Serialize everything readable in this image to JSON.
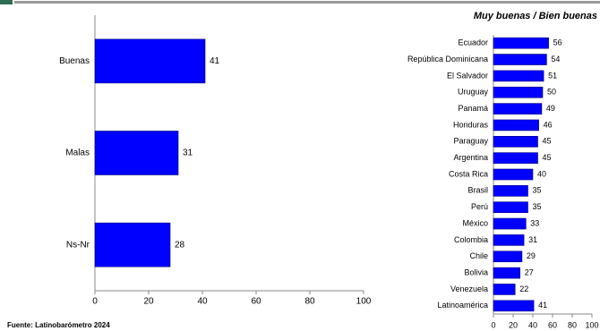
{
  "chart_data": [
    {
      "type": "hbar",
      "categories": [
        "Buenas",
        "Malas",
        "Ns-Nr"
      ],
      "values": [
        41,
        31,
        28
      ],
      "color": "#0000ff",
      "xlim": [
        0,
        100
      ],
      "xticks": [
        0,
        20,
        40,
        60,
        80,
        100
      ]
    },
    {
      "type": "hbar",
      "title": "Muy buenas / Bien buenas",
      "categories": [
        "Ecuador",
        "República Dominicana",
        "El Salvador",
        "Uruguay",
        "Panamá",
        "Honduras",
        "Paraguay",
        "Argentina",
        "Costa Rica",
        "Brasil",
        "Perú",
        "México",
        "Colombia",
        "Chile",
        "Bolivia",
        "Venezuela",
        "Latinoamérica"
      ],
      "values": [
        56,
        54,
        51,
        50,
        49,
        46,
        45,
        45,
        40,
        35,
        35,
        33,
        31,
        29,
        27,
        22,
        41
      ],
      "color": "#0000ff",
      "xlim": [
        0,
        100
      ],
      "xticks": [
        0,
        20,
        40,
        60,
        80,
        100
      ]
    }
  ],
  "source": "Fuente: Latinobarómetro 2024"
}
